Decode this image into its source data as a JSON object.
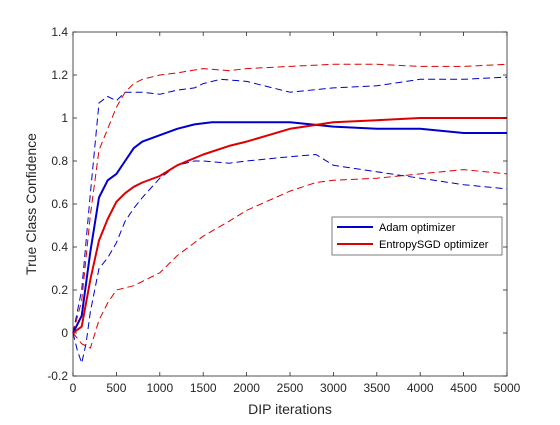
{
  "chart_data": {
    "type": "line",
    "title": "",
    "xlabel": "DIP iterations",
    "ylabel": "True Class Confidence",
    "xlim": [
      0,
      5000
    ],
    "ylim": [
      -0.2,
      1.4
    ],
    "xticks": [
      0,
      500,
      1000,
      1500,
      2000,
      2500,
      3000,
      3500,
      4000,
      4500,
      5000
    ],
    "xtick_labels": [
      "0",
      "500",
      "1000",
      "1500",
      "2000",
      "2500",
      "3000",
      "3500",
      "4000",
      "4500",
      "5000"
    ],
    "yticks": [
      -0.2,
      0,
      0.2,
      0.4,
      0.6,
      0.8,
      1,
      1.2,
      1.4
    ],
    "ytick_labels": [
      "-0.2",
      "0",
      "0.2",
      "0.4",
      "0.6",
      "0.8",
      "1",
      "1.2",
      "1.4"
    ],
    "grid": false,
    "legend_position": "right",
    "series": [
      {
        "name": "Adam optimizer",
        "color": "#0000cc",
        "style": "solid",
        "in_legend": true,
        "x": [
          0,
          100,
          200,
          300,
          400,
          500,
          600,
          700,
          800,
          1000,
          1200,
          1400,
          1600,
          2000,
          2500,
          3000,
          3500,
          4000,
          4500,
          5000
        ],
        "y": [
          0.0,
          0.08,
          0.38,
          0.63,
          0.71,
          0.74,
          0.8,
          0.86,
          0.89,
          0.92,
          0.95,
          0.97,
          0.98,
          0.98,
          0.98,
          0.96,
          0.95,
          0.95,
          0.93,
          0.93
        ]
      },
      {
        "name": "EntropySGD optimizer",
        "color": "#dd0000",
        "style": "solid",
        "in_legend": true,
        "x": [
          0,
          100,
          200,
          300,
          400,
          500,
          600,
          700,
          800,
          1000,
          1200,
          1500,
          1800,
          2000,
          2500,
          3000,
          3500,
          4000,
          4500,
          5000
        ],
        "y": [
          0.0,
          0.03,
          0.25,
          0.43,
          0.53,
          0.61,
          0.65,
          0.68,
          0.7,
          0.73,
          0.78,
          0.83,
          0.87,
          0.89,
          0.95,
          0.98,
          0.99,
          1.0,
          1.0,
          1.0
        ]
      },
      {
        "name": "",
        "color": "#0000cc",
        "style": "dashed",
        "in_legend": false,
        "x": [
          0,
          50,
          100,
          150,
          200,
          300,
          400,
          500,
          600,
          700,
          800,
          1000,
          1200,
          1400,
          1500,
          1800,
          2000,
          2500,
          2800,
          3000,
          3500,
          4000,
          4500,
          5000
        ],
        "y": [
          0.0,
          -0.08,
          -0.14,
          -0.05,
          0.1,
          0.3,
          0.35,
          0.42,
          0.52,
          0.58,
          0.63,
          0.72,
          0.78,
          0.8,
          0.8,
          0.79,
          0.8,
          0.82,
          0.83,
          0.78,
          0.75,
          0.72,
          0.69,
          0.67
        ]
      },
      {
        "name": "",
        "color": "#0000cc",
        "style": "dashed",
        "in_legend": false,
        "x": [
          0,
          100,
          200,
          300,
          400,
          500,
          600,
          700,
          800,
          1000,
          1200,
          1400,
          1500,
          1700,
          2000,
          2500,
          3000,
          3500,
          4000,
          4500,
          5000
        ],
        "y": [
          0.0,
          0.2,
          0.65,
          1.07,
          1.1,
          1.08,
          1.12,
          1.12,
          1.12,
          1.11,
          1.13,
          1.14,
          1.16,
          1.18,
          1.17,
          1.12,
          1.14,
          1.15,
          1.18,
          1.18,
          1.19
        ]
      },
      {
        "name": "",
        "color": "#dd0000",
        "style": "dashed",
        "in_legend": false,
        "x": [
          0,
          100,
          200,
          300,
          400,
          500,
          600,
          700,
          800,
          1000,
          1200,
          1500,
          1800,
          2000,
          2500,
          2800,
          3000,
          3500,
          4000,
          4500,
          5000
        ],
        "y": [
          0.0,
          -0.05,
          -0.07,
          0.06,
          0.14,
          0.2,
          0.21,
          0.22,
          0.24,
          0.28,
          0.36,
          0.45,
          0.52,
          0.57,
          0.66,
          0.7,
          0.71,
          0.72,
          0.74,
          0.76,
          0.74
        ]
      },
      {
        "name": "",
        "color": "#dd0000",
        "style": "dashed",
        "in_legend": false,
        "x": [
          0,
          100,
          200,
          300,
          400,
          500,
          600,
          700,
          800,
          1000,
          1200,
          1500,
          1800,
          2000,
          2500,
          3000,
          3500,
          4000,
          4500,
          5000
        ],
        "y": [
          0.0,
          0.15,
          0.55,
          0.85,
          0.95,
          1.05,
          1.12,
          1.16,
          1.18,
          1.2,
          1.21,
          1.23,
          1.22,
          1.23,
          1.24,
          1.25,
          1.25,
          1.24,
          1.24,
          1.25
        ]
      }
    ]
  }
}
